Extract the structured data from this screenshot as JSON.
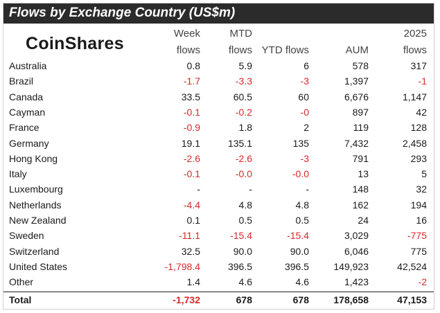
{
  "title": "Flows by Exchange Country (US$m)",
  "logo_text": "CoinShares",
  "headers": {
    "week": [
      "Week",
      "flows"
    ],
    "mtd": [
      "MTD",
      "flows"
    ],
    "ytd": [
      "",
      "YTD flows"
    ],
    "aum": [
      "",
      "AUM"
    ],
    "y2025": [
      "2025",
      "flows"
    ]
  },
  "colors": {
    "title_bg": "#2b2b2b",
    "negative": "#d42a2a",
    "text": "#1a1a1a"
  },
  "rows": [
    {
      "name": "Australia",
      "week": "0.8",
      "mtd": "5.9",
      "ytd": "6",
      "aum": "578",
      "y2025": "317"
    },
    {
      "name": "Brazil",
      "week": "-1.7",
      "mtd": "-3.3",
      "ytd": "-3",
      "aum": "1,397",
      "y2025": "-1"
    },
    {
      "name": "Canada",
      "week": "33.5",
      "mtd": "60.5",
      "ytd": "60",
      "aum": "6,676",
      "y2025": "1,147"
    },
    {
      "name": "Cayman",
      "week": "-0.1",
      "mtd": "-0.2",
      "ytd": "-0",
      "aum": "897",
      "y2025": "42"
    },
    {
      "name": "France",
      "week": "-0.9",
      "mtd": "1.8",
      "ytd": "2",
      "aum": "119",
      "y2025": "128"
    },
    {
      "name": "Germany",
      "week": "19.1",
      "mtd": "135.1",
      "ytd": "135",
      "aum": "7,432",
      "y2025": "2,458"
    },
    {
      "name": "Hong Kong",
      "week": "-2.6",
      "mtd": "-2.6",
      "ytd": "-3",
      "aum": "791",
      "y2025": "293"
    },
    {
      "name": "Italy",
      "week": "-0.1",
      "mtd": "-0.0",
      "ytd": "-0.0",
      "aum": "13",
      "y2025": "5"
    },
    {
      "name": "Luxembourg",
      "week": "-",
      "mtd": "-",
      "ytd": "-",
      "aum": "148",
      "y2025": "32"
    },
    {
      "name": "Netherlands",
      "week": "-4.4",
      "mtd": "4.8",
      "ytd": "4.8",
      "aum": "162",
      "y2025": "194"
    },
    {
      "name": "New Zealand",
      "week": "0.1",
      "mtd": "0.5",
      "ytd": "0.5",
      "aum": "24",
      "y2025": "16"
    },
    {
      "name": "Sweden",
      "week": "-11.1",
      "mtd": "-15.4",
      "ytd": "-15.4",
      "aum": "3,029",
      "y2025": "-775"
    },
    {
      "name": "Switzerland",
      "week": "32.5",
      "mtd": "90.0",
      "ytd": "90.0",
      "aum": "6,046",
      "y2025": "775"
    },
    {
      "name": "United States",
      "week": "-1,798.4",
      "mtd": "396.5",
      "ytd": "396.5",
      "aum": "149,923",
      "y2025": "42,524"
    },
    {
      "name": "Other",
      "week": "1.4",
      "mtd": "4.6",
      "ytd": "4.6",
      "aum": "1,423",
      "y2025": "-2"
    }
  ],
  "total": {
    "name": "Total",
    "week": "-1,732",
    "mtd": "678",
    "ytd": "678",
    "aum": "178,658",
    "y2025": "47,153"
  }
}
